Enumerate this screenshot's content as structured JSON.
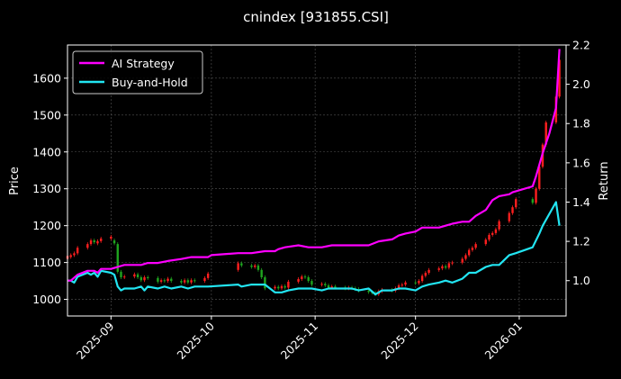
{
  "chart_data": {
    "type": "line",
    "title": "cnindex [931855.CSI]",
    "ylabel_left": "Price",
    "ylabel_right": "Return",
    "xlabel": "",
    "x_ticks": [
      "2025-09",
      "2025-10",
      "2025-11",
      "2025-12",
      "2026-01"
    ],
    "x_tick_dates": [
      "2025-09-01",
      "2025-10-01",
      "2025-11-01",
      "2025-12-01",
      "2026-01-01"
    ],
    "xlim": [
      "2025-08-19",
      "2026-01-15"
    ],
    "ylim_left": [
      955,
      1690
    ],
    "yticks_left": [
      1000,
      1100,
      1200,
      1300,
      1400,
      1500,
      1600
    ],
    "ylim_right": [
      0.82,
      2.2
    ],
    "yticks_right": [
      "1.0",
      "1.2",
      "1.4",
      "1.6",
      "1.8",
      "2.0",
      "2.2"
    ],
    "grid": true,
    "legend_position": "top-left",
    "colors": {
      "up": "#ff1f1f",
      "down": "#1fa51f",
      "ai": "#ff00ff",
      "bh": "#22e5f2",
      "background": "#000000"
    },
    "series": [
      {
        "name": "AI Strategy",
        "dates": [
          "2025-08-19",
          "2025-08-20",
          "2025-08-22",
          "2025-08-25",
          "2025-08-27",
          "2025-08-28",
          "2025-08-29",
          "2025-09-01",
          "2025-09-03",
          "2025-09-05",
          "2025-09-08",
          "2025-09-10",
          "2025-09-12",
          "2025-09-15",
          "2025-09-18",
          "2025-09-22",
          "2025-09-25",
          "2025-09-26",
          "2025-09-30",
          "2025-10-01",
          "2025-10-09",
          "2025-10-13",
          "2025-10-17",
          "2025-10-20",
          "2025-10-21",
          "2025-10-23",
          "2025-10-27",
          "2025-10-30",
          "2025-11-03",
          "2025-11-06",
          "2025-11-10",
          "2025-11-13",
          "2025-11-17",
          "2025-11-20",
          "2025-11-24",
          "2025-11-26",
          "2025-11-28",
          "2025-12-01",
          "2025-12-03",
          "2025-12-05",
          "2025-12-08",
          "2025-12-10",
          "2025-12-12",
          "2025-12-15",
          "2025-12-17",
          "2025-12-19",
          "2025-12-22",
          "2025-12-24",
          "2025-12-26",
          "2025-12-29",
          "2025-12-30",
          "2026-01-05",
          "2026-01-06",
          "2026-01-08",
          "2026-01-10",
          "2026-01-12",
          "2026-01-13"
        ],
        "values": [
          1.0,
          1.0,
          1.03,
          1.05,
          1.05,
          1.04,
          1.06,
          1.06,
          1.07,
          1.08,
          1.08,
          1.08,
          1.09,
          1.09,
          1.1,
          1.11,
          1.12,
          1.12,
          1.12,
          1.13,
          1.14,
          1.14,
          1.15,
          1.15,
          1.16,
          1.17,
          1.18,
          1.17,
          1.17,
          1.18,
          1.18,
          1.18,
          1.18,
          1.2,
          1.21,
          1.23,
          1.24,
          1.25,
          1.27,
          1.27,
          1.27,
          1.28,
          1.29,
          1.3,
          1.3,
          1.33,
          1.36,
          1.41,
          1.43,
          1.44,
          1.45,
          1.48,
          1.53,
          1.65,
          1.75,
          1.88,
          2.18
        ]
      },
      {
        "name": "Buy-and-Hold",
        "dates": [
          "2025-08-19",
          "2025-08-20",
          "2025-08-21",
          "2025-08-22",
          "2025-08-25",
          "2025-08-26",
          "2025-08-27",
          "2025-08-28",
          "2025-08-29",
          "2025-09-01",
          "2025-09-02",
          "2025-09-03",
          "2025-09-04",
          "2025-09-05",
          "2025-09-08",
          "2025-09-10",
          "2025-09-11",
          "2025-09-12",
          "2025-09-15",
          "2025-09-17",
          "2025-09-19",
          "2025-09-22",
          "2025-09-24",
          "2025-09-26",
          "2025-09-30",
          "2025-10-09",
          "2025-10-10",
          "2025-10-13",
          "2025-10-15",
          "2025-10-17",
          "2025-10-20",
          "2025-10-22",
          "2025-10-24",
          "2025-10-27",
          "2025-10-29",
          "2025-10-31",
          "2025-11-03",
          "2025-11-05",
          "2025-11-07",
          "2025-11-10",
          "2025-11-12",
          "2025-11-14",
          "2025-11-17",
          "2025-11-19",
          "2025-11-21",
          "2025-11-24",
          "2025-11-26",
          "2025-11-28",
          "2025-12-01",
          "2025-12-03",
          "2025-12-05",
          "2025-12-08",
          "2025-12-10",
          "2025-12-12",
          "2025-12-15",
          "2025-12-17",
          "2025-12-19",
          "2025-12-22",
          "2025-12-24",
          "2025-12-26",
          "2025-12-29",
          "2025-12-31",
          "2026-01-05",
          "2026-01-07",
          "2026-01-08",
          "2026-01-12",
          "2026-01-13"
        ],
        "values": [
          1.0,
          1.0,
          0.99,
          1.02,
          1.04,
          1.03,
          1.04,
          1.02,
          1.05,
          1.04,
          1.03,
          0.97,
          0.95,
          0.96,
          0.96,
          0.97,
          0.95,
          0.97,
          0.96,
          0.97,
          0.96,
          0.97,
          0.96,
          0.97,
          0.97,
          0.98,
          0.97,
          0.98,
          0.98,
          0.98,
          0.94,
          0.94,
          0.95,
          0.96,
          0.96,
          0.96,
          0.95,
          0.96,
          0.96,
          0.96,
          0.96,
          0.95,
          0.96,
          0.93,
          0.95,
          0.95,
          0.96,
          0.96,
          0.95,
          0.97,
          0.98,
          0.99,
          1.0,
          0.99,
          1.01,
          1.04,
          1.04,
          1.07,
          1.08,
          1.08,
          1.13,
          1.14,
          1.17,
          1.24,
          1.28,
          1.4,
          1.28
        ]
      },
      {
        "name": "Price",
        "type": "candlestick",
        "dates": [
          "2025-08-19",
          "2025-08-20",
          "2025-08-21",
          "2025-08-22",
          "2025-08-25",
          "2025-08-26",
          "2025-08-27",
          "2025-08-28",
          "2025-08-29",
          "2025-09-01",
          "2025-09-02",
          "2025-09-03",
          "2025-09-04",
          "2025-09-05",
          "2025-09-08",
          "2025-09-09",
          "2025-09-10",
          "2025-09-11",
          "2025-09-12",
          "2025-09-15",
          "2025-09-16",
          "2025-09-17",
          "2025-09-18",
          "2025-09-19",
          "2025-09-22",
          "2025-09-23",
          "2025-09-24",
          "2025-09-25",
          "2025-09-26",
          "2025-09-29",
          "2025-09-30",
          "2025-10-09",
          "2025-10-10",
          "2025-10-13",
          "2025-10-14",
          "2025-10-15",
          "2025-10-16",
          "2025-10-17",
          "2025-10-20",
          "2025-10-21",
          "2025-10-22",
          "2025-10-23",
          "2025-10-24",
          "2025-10-27",
          "2025-10-28",
          "2025-10-29",
          "2025-10-30",
          "2025-10-31",
          "2025-11-03",
          "2025-11-04",
          "2025-11-05",
          "2025-11-06",
          "2025-11-07",
          "2025-11-10",
          "2025-11-11",
          "2025-11-12",
          "2025-11-13",
          "2025-11-14",
          "2025-11-17",
          "2025-11-18",
          "2025-11-19",
          "2025-11-20",
          "2025-11-21",
          "2025-11-24",
          "2025-11-25",
          "2025-11-26",
          "2025-11-27",
          "2025-11-28",
          "2025-12-01",
          "2025-12-02",
          "2025-12-03",
          "2025-12-04",
          "2025-12-05",
          "2025-12-08",
          "2025-12-09",
          "2025-12-10",
          "2025-12-11",
          "2025-12-12",
          "2025-12-15",
          "2025-12-16",
          "2025-12-17",
          "2025-12-18",
          "2025-12-19",
          "2025-12-22",
          "2025-12-23",
          "2025-12-24",
          "2025-12-25",
          "2025-12-26",
          "2025-12-29",
          "2025-12-30",
          "2025-12-31",
          "2026-01-05",
          "2026-01-06",
          "2026-01-07",
          "2026-01-08",
          "2026-01-09",
          "2026-01-12",
          "2026-01-13"
        ],
        "open": [
          1110,
          1115,
          1120,
          1125,
          1140,
          1150,
          1160,
          1152,
          1158,
          1165,
          1160,
          1150,
          1075,
          1060,
          1062,
          1068,
          1060,
          1052,
          1060,
          1058,
          1048,
          1052,
          1050,
          1056,
          1050,
          1046,
          1052,
          1046,
          1052,
          1050,
          1058,
          1080,
          1098,
          1092,
          1088,
          1092,
          1080,
          1060,
          1030,
          1034,
          1030,
          1036,
          1032,
          1048,
          1055,
          1062,
          1060,
          1050,
          1040,
          1042,
          1038,
          1032,
          1035,
          1032,
          1030,
          1032,
          1030,
          1028,
          1024,
          1020,
          1018,
          1014,
          1022,
          1026,
          1024,
          1030,
          1038,
          1040,
          1046,
          1044,
          1050,
          1064,
          1072,
          1080,
          1084,
          1090,
          1086,
          1098,
          1100,
          1110,
          1120,
          1134,
          1140,
          1150,
          1162,
          1175,
          1180,
          1190,
          1212,
          1234,
          1250,
          1272,
          1262,
          1300,
          1360,
          1420,
          1480,
          1550
        ],
        "close": [
          1118,
          1120,
          1125,
          1140,
          1150,
          1160,
          1155,
          1158,
          1165,
          1170,
          1152,
          1075,
          1060,
          1062,
          1068,
          1060,
          1052,
          1060,
          1058,
          1048,
          1052,
          1050,
          1056,
          1050,
          1046,
          1052,
          1046,
          1052,
          1050,
          1058,
          1070,
          1098,
          1092,
          1088,
          1092,
          1080,
          1060,
          1030,
          1034,
          1030,
          1036,
          1032,
          1048,
          1055,
          1062,
          1060,
          1050,
          1040,
          1042,
          1038,
          1032,
          1035,
          1032,
          1030,
          1032,
          1030,
          1028,
          1024,
          1020,
          1018,
          1014,
          1022,
          1026,
          1024,
          1030,
          1038,
          1040,
          1046,
          1044,
          1050,
          1064,
          1072,
          1080,
          1084,
          1090,
          1086,
          1098,
          1100,
          1110,
          1120,
          1134,
          1140,
          1150,
          1162,
          1175,
          1180,
          1190,
          1212,
          1234,
          1250,
          1272,
          1262,
          1300,
          1360,
          1420,
          1480,
          1550,
          1650
        ]
      }
    ]
  }
}
